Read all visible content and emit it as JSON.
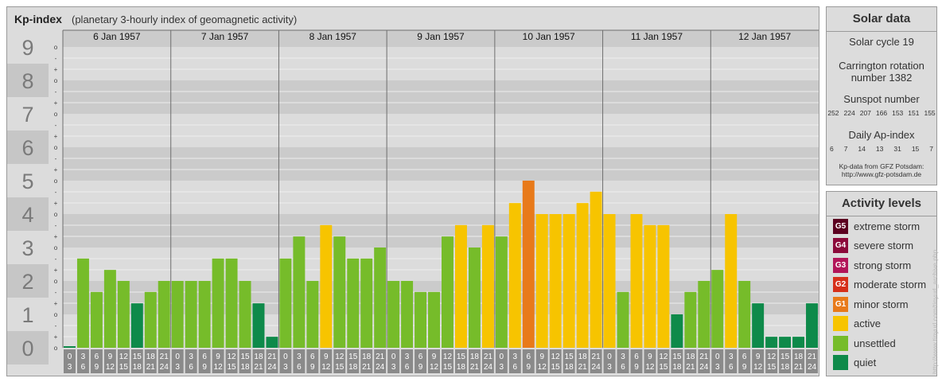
{
  "header": {
    "title": "Kp-index",
    "subtitle": "(planetary 3-hourly index of geomagnetic activity)"
  },
  "solar": {
    "title": "Solar data",
    "cycle": "Solar cycle 19",
    "carrington_line1": "Carrington rotation",
    "carrington_line2": "number 1382",
    "sunspot_label": "Sunspot number",
    "sunspot_values": [
      "252",
      "224",
      "207",
      "166",
      "153",
      "151",
      "155"
    ],
    "ap_label": "Daily Ap-index",
    "ap_values": [
      "6",
      "7",
      "14",
      "13",
      "31",
      "15",
      "7"
    ],
    "source_line1": "Kp-data from GFZ Potsdam:",
    "source_line2": "http://www.gfz-potsdam.de"
  },
  "legend": {
    "title": "Activity levels",
    "items": [
      {
        "code": "G5",
        "label": "extreme storm",
        "color": "#5b0020"
      },
      {
        "code": "G4",
        "label": "severe storm",
        "color": "#8b0a3a"
      },
      {
        "code": "G3",
        "label": "strong storm",
        "color": "#b21559"
      },
      {
        "code": "G2",
        "label": "moderate storm",
        "color": "#d6301a"
      },
      {
        "code": "G1",
        "label": "minor storm",
        "color": "#e87a1a"
      },
      {
        "code": "",
        "label": "active",
        "color": "#f7c400"
      },
      {
        "code": "",
        "label": "unsettled",
        "color": "#76bc2a"
      },
      {
        "code": "",
        "label": "quiet",
        "color": "#0e8a4a"
      }
    ]
  },
  "watermark": "http://www.tinyurl.com/tinyurl_archive.php",
  "colors": {
    "quiet": "#0e8a4a",
    "unsettled": "#76bc2a",
    "active": "#f7c400",
    "minor_storm": "#e87a1a"
  },
  "chart_data": {
    "type": "bar",
    "ylim": [
      0,
      9
    ],
    "y_ticks": [
      "0",
      "1",
      "2",
      "3",
      "4",
      "5",
      "6",
      "7",
      "8",
      "9"
    ],
    "sub_ticks": [
      "o",
      "+",
      "-"
    ],
    "days": [
      "6 Jan 1957",
      "7 Jan 1957",
      "8 Jan 1957",
      "9 Jan 1957",
      "10 Jan 1957",
      "11 Jan 1957",
      "12 Jan 1957"
    ],
    "interval_starts": [
      "0",
      "3",
      "6",
      "9",
      "12",
      "15",
      "18",
      "21"
    ],
    "interval_ends": [
      "3",
      "6",
      "9",
      "12",
      "15",
      "18",
      "21",
      "24"
    ],
    "values": [
      [
        0.0,
        2.67,
        1.67,
        2.33,
        2.0,
        1.33,
        1.67,
        2.0
      ],
      [
        2.0,
        2.0,
        2.0,
        2.67,
        2.67,
        2.0,
        1.33,
        0.33
      ],
      [
        2.67,
        3.33,
        2.0,
        3.67,
        3.33,
        2.67,
        2.67,
        3.0
      ],
      [
        2.0,
        2.0,
        1.67,
        1.67,
        3.33,
        3.67,
        3.0,
        3.67
      ],
      [
        3.33,
        4.33,
        5.0,
        4.0,
        4.0,
        4.0,
        4.33,
        4.67
      ],
      [
        4.0,
        1.67,
        4.0,
        3.67,
        3.67,
        1.0,
        1.67,
        2.0
      ],
      [
        2.33,
        4.0,
        2.0,
        1.33,
        0.33,
        0.33,
        0.33,
        1.33
      ]
    ]
  }
}
